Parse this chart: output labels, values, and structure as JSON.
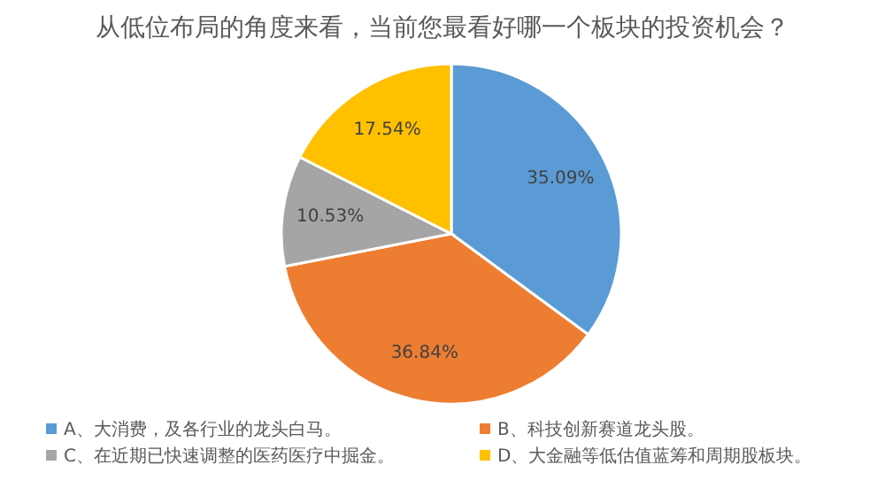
{
  "chart_data": {
    "type": "pie",
    "title": "从低位布局的角度来看，当前您最看好哪一个板块的投资机会？",
    "categories": [
      "A、大消费，及各行业的龙头白马。",
      "B、科技创新赛道龙头股。",
      "C、在近期已快速调整的医药医疗中掘金。",
      "D、大金融等低估值蓝筹和周期股板块。"
    ],
    "values": [
      35.09,
      36.84,
      10.53,
      17.54
    ],
    "value_labels": [
      "35.09%",
      "36.84%",
      "10.53%",
      "17.54%"
    ],
    "colors": [
      "#5b9bd5",
      "#ed7d31",
      "#a5a5a5",
      "#ffc000"
    ],
    "legend": "bottom"
  }
}
